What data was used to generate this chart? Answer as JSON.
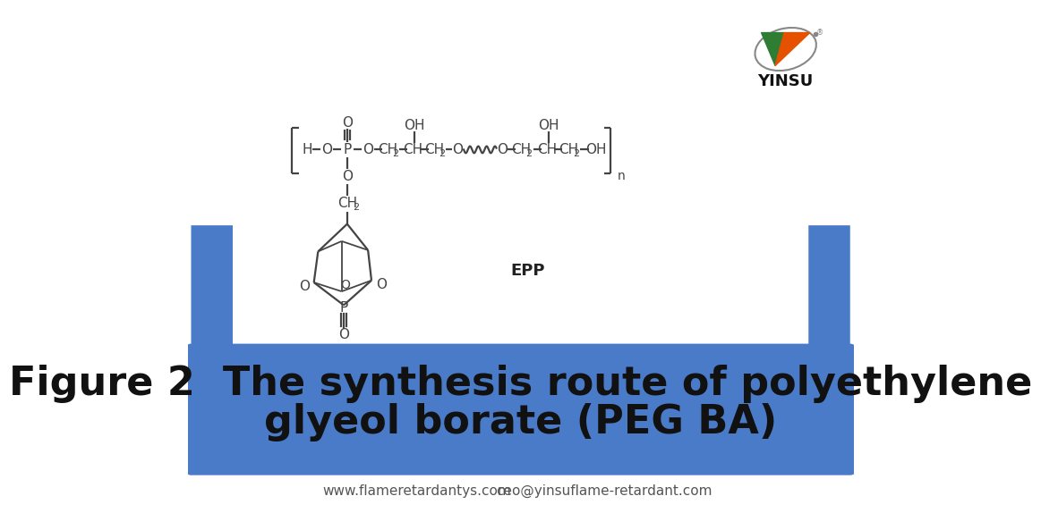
{
  "bg_color": "#ffffff",
  "blue_bar_color": "#4A7BC8",
  "title_line1": "Figure 2  The synthesis route of polyethylene",
  "title_line2": "glyeol borate (PEG BA)",
  "title_color": "#111111",
  "title_fontsize": 32,
  "title_bold": true,
  "footer_text1": "www.flameretardantys.com",
  "footer_text2": "ceo@yinsuflame-retardant.com",
  "footer_color": "#555555",
  "footer_fontsize": 11,
  "yinsu_text": "YINSU",
  "chemical_formula_label": "EPP",
  "chem_label_fontsize": 13,
  "chain_color": "#444444",
  "chain_lw": 1.6
}
